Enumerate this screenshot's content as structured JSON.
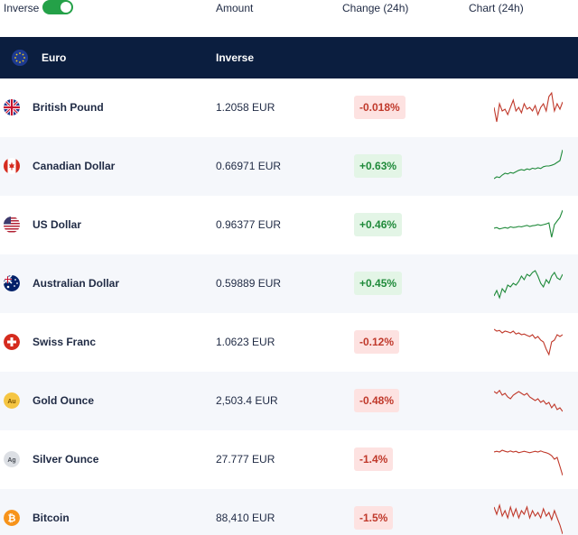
{
  "topbar": {
    "inverse_label": "Inverse",
    "toggle_on": true,
    "col_amount": "Amount",
    "col_change": "Change (24h)",
    "col_chart": "Chart (24h)"
  },
  "base": {
    "currency": "Euro",
    "mode_label": "Inverse"
  },
  "colors": {
    "up": "#1f8a3a",
    "down": "#c0392b",
    "header_bg": "#0b1e3f",
    "toggle": "#24a148"
  },
  "rows": [
    {
      "name": "British Pound",
      "amount": "1.2058 EUR",
      "change": "-0.018%",
      "direction": "down",
      "icon": "uk-flag-icon",
      "spark": [
        0.5,
        0.9,
        0.4,
        0.6,
        0.55,
        0.7,
        0.5,
        0.3,
        0.6,
        0.5,
        0.65,
        0.4,
        0.55,
        0.5,
        0.6,
        0.45,
        0.7,
        0.5,
        0.4,
        0.6,
        0.2,
        0.1,
        0.6,
        0.4,
        0.55,
        0.35
      ]
    },
    {
      "name": "Canadian Dollar",
      "amount": "0.66971 EUR",
      "change": "+0.63%",
      "direction": "up",
      "icon": "canada-flag-icon",
      "spark": [
        0.85,
        0.8,
        0.82,
        0.75,
        0.7,
        0.72,
        0.68,
        0.7,
        0.66,
        0.62,
        0.6,
        0.62,
        0.58,
        0.6,
        0.56,
        0.58,
        0.55,
        0.57,
        0.52,
        0.5,
        0.5,
        0.48,
        0.45,
        0.4,
        0.35,
        0.05
      ]
    },
    {
      "name": "US Dollar",
      "amount": "0.96377 EUR",
      "change": "+0.46%",
      "direction": "up",
      "icon": "us-flag-icon",
      "spark": [
        0.6,
        0.58,
        0.62,
        0.6,
        0.58,
        0.6,
        0.56,
        0.58,
        0.57,
        0.55,
        0.56,
        0.54,
        0.52,
        0.55,
        0.53,
        0.52,
        0.5,
        0.52,
        0.5,
        0.48,
        0.45,
        0.85,
        0.5,
        0.4,
        0.3,
        0.1
      ]
    },
    {
      "name": "Australian Dollar",
      "amount": "0.59889 EUR",
      "change": "+0.45%",
      "direction": "up",
      "icon": "australia-flag-icon",
      "spark": [
        0.85,
        0.7,
        0.9,
        0.65,
        0.75,
        0.55,
        0.6,
        0.5,
        0.55,
        0.45,
        0.3,
        0.4,
        0.25,
        0.3,
        0.2,
        0.15,
        0.3,
        0.5,
        0.6,
        0.4,
        0.5,
        0.3,
        0.2,
        0.35,
        0.4,
        0.25
      ]
    },
    {
      "name": "Swiss Franc",
      "amount": "1.0623 EUR",
      "change": "-0.12%",
      "direction": "down",
      "icon": "swiss-flag-icon",
      "spark": [
        0.15,
        0.2,
        0.18,
        0.25,
        0.2,
        0.22,
        0.25,
        0.2,
        0.28,
        0.25,
        0.3,
        0.28,
        0.32,
        0.35,
        0.3,
        0.4,
        0.35,
        0.45,
        0.5,
        0.7,
        0.85,
        0.5,
        0.45,
        0.3,
        0.35,
        0.3
      ]
    },
    {
      "name": "Gold Ounce",
      "amount": "2,503.4 EUR",
      "change": "-0.48%",
      "direction": "down",
      "icon": "gold-icon",
      "spark": [
        0.25,
        0.3,
        0.22,
        0.35,
        0.3,
        0.4,
        0.45,
        0.35,
        0.3,
        0.25,
        0.3,
        0.35,
        0.3,
        0.4,
        0.45,
        0.5,
        0.45,
        0.55,
        0.5,
        0.6,
        0.55,
        0.7,
        0.6,
        0.75,
        0.7,
        0.8
      ]
    },
    {
      "name": "Silver Ounce",
      "amount": "27.777 EUR",
      "change": "-1.4%",
      "direction": "down",
      "icon": "silver-icon",
      "spark": [
        0.3,
        0.28,
        0.3,
        0.25,
        0.28,
        0.3,
        0.27,
        0.3,
        0.28,
        0.32,
        0.3,
        0.28,
        0.3,
        0.32,
        0.3,
        0.28,
        0.3,
        0.27,
        0.3,
        0.32,
        0.35,
        0.4,
        0.5,
        0.45,
        0.7,
        0.95
      ]
    },
    {
      "name": "Bitcoin",
      "amount": "88,410 EUR",
      "change": "-1.5%",
      "direction": "down",
      "icon": "bitcoin-icon",
      "spark": [
        0.2,
        0.4,
        0.15,
        0.45,
        0.3,
        0.5,
        0.2,
        0.45,
        0.25,
        0.5,
        0.3,
        0.4,
        0.2,
        0.5,
        0.3,
        0.45,
        0.35,
        0.5,
        0.25,
        0.45,
        0.35,
        0.55,
        0.3,
        0.5,
        0.7,
        0.95
      ]
    }
  ]
}
